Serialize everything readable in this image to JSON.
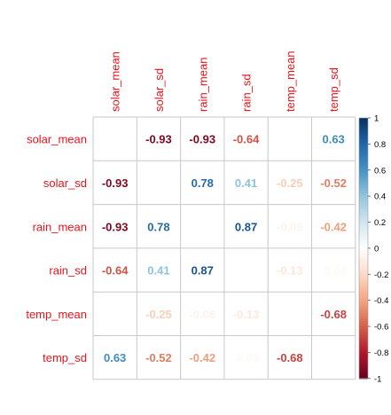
{
  "chart_data": {
    "type": "heatmap",
    "variables": [
      "solar_mean",
      "solar_sd",
      "rain_mean",
      "rain_sd",
      "temp_mean",
      "temp_sd"
    ],
    "matrix": [
      [
        null,
        -0.93,
        -0.93,
        -0.64,
        0.0,
        0.63
      ],
      [
        -0.93,
        null,
        0.78,
        0.41,
        -0.25,
        -0.52
      ],
      [
        -0.93,
        0.78,
        null,
        0.87,
        -0.06,
        -0.42
      ],
      [
        -0.64,
        0.41,
        0.87,
        null,
        -0.13,
        -0.03
      ],
      [
        0.0,
        -0.25,
        -0.06,
        -0.13,
        null,
        -0.68
      ],
      [
        0.63,
        -0.52,
        -0.42,
        -0.03,
        -0.68,
        null
      ]
    ],
    "labels": [
      [
        "",
        "-0.93",
        "-0.93",
        "-0.64",
        "",
        "0.63"
      ],
      [
        "-0.93",
        "",
        "0.78",
        "0.41",
        "-0.25",
        "-0.52"
      ],
      [
        "-0.93",
        "0.78",
        "",
        "0.87",
        "-0.06",
        "-0.42"
      ],
      [
        "-0.64",
        "0.41",
        "0.87",
        "",
        "-0.13",
        "-0.03"
      ],
      [
        "",
        "-0.25",
        "-0.06",
        "-0.13",
        "",
        "-0.68"
      ],
      [
        "0.63",
        "-0.52",
        "-0.42",
        "-0.03",
        "-0.68",
        ""
      ]
    ],
    "colorbar": {
      "range": [
        -1,
        1
      ],
      "ticks": [
        "1",
        "0.8",
        "0.6",
        "0.4",
        "0.2",
        "0",
        "-0.2",
        "-0.4",
        "-0.6",
        "-0.8",
        "-1"
      ],
      "placement": "right"
    },
    "label_color": "#e8141c",
    "grid": true
  }
}
